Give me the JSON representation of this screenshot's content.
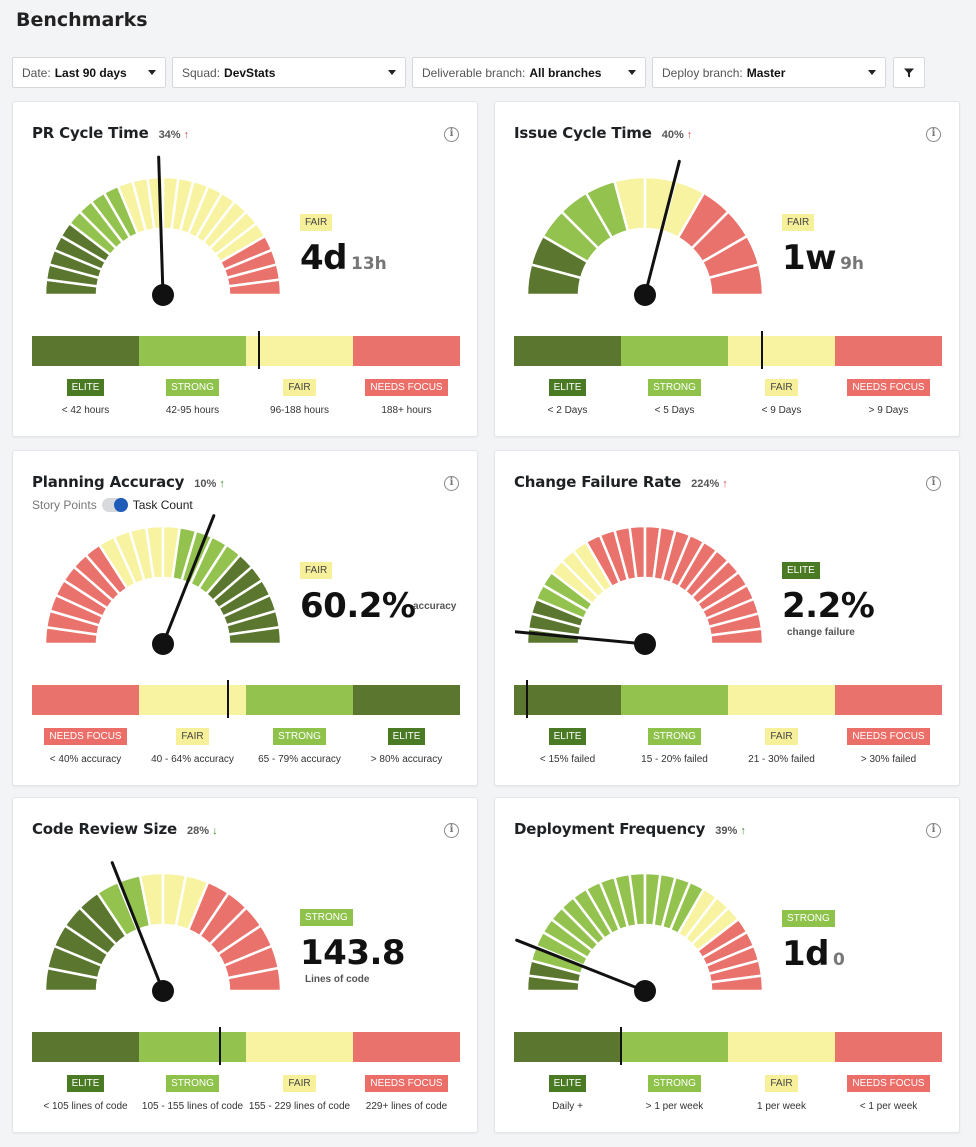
{
  "page": {
    "title": "Benchmarks"
  },
  "filters": [
    {
      "label": "Date:",
      "value": "Last 90 days",
      "width": 154
    },
    {
      "label": "Squad:",
      "value": "DevStats",
      "width": 234
    },
    {
      "label": "Deliverable branch:",
      "value": "All branches",
      "width": 234
    },
    {
      "label": "Deploy branch:",
      "value": "Master",
      "width": 234
    }
  ],
  "filter_button": {
    "icon": "filter-icon"
  },
  "colors": {
    "elite": "#5b772f",
    "strong": "#94c24e",
    "fair": "#f8f3a0",
    "needs_focus": "#ea726c"
  },
  "cards": [
    {
      "title": "PR Cycle Time",
      "change": "34%",
      "trend": "up",
      "trend_color": "red",
      "rating": "FAIR",
      "value": "4d",
      "unit": "13h",
      "caption": "",
      "gauge": {
        "order": [
          "elite",
          "strong",
          "fair",
          "needs"
        ],
        "counts": [
          5,
          4,
          11,
          4
        ],
        "needle": 0.49
      },
      "marker": 0.53,
      "legend": [
        {
          "badge": "ELITE",
          "cls": "elite",
          "range": "< 42 hours"
        },
        {
          "badge": "STRONG",
          "cls": "strong",
          "range": "42-95 hours"
        },
        {
          "badge": "FAIR",
          "cls": "fair",
          "range": "96-188 hours"
        },
        {
          "badge": "NEEDS FOCUS",
          "cls": "needs",
          "range": "188+ hours"
        }
      ]
    },
    {
      "title": "Issue Cycle Time",
      "change": "40%",
      "trend": "up",
      "trend_color": "red",
      "rating": "FAIR",
      "value": "1w",
      "unit": "9h",
      "caption": "",
      "gauge": {
        "order": [
          "elite",
          "strong",
          "fair",
          "needs"
        ],
        "counts": [
          2,
          3,
          3,
          4
        ],
        "needle": 0.58
      },
      "marker": 0.58,
      "legend": [
        {
          "badge": "ELITE",
          "cls": "elite",
          "range": "< 2 Days"
        },
        {
          "badge": "STRONG",
          "cls": "strong",
          "range": "< 5 Days"
        },
        {
          "badge": "FAIR",
          "cls": "fair",
          "range": "< 9 Days"
        },
        {
          "badge": "NEEDS FOCUS",
          "cls": "needs",
          "range": "> 9 Days"
        }
      ]
    },
    {
      "title": "Planning Accuracy",
      "change": "10%",
      "trend": "up",
      "trend_color": "green",
      "rating": "FAIR",
      "value": "60.2%",
      "unit": "",
      "caption": "accuracy",
      "toggle": {
        "off_label": "Story Points",
        "on_label": "Task Count"
      },
      "gauge": {
        "order": [
          "needs",
          "fair",
          "strong",
          "elite"
        ],
        "counts": [
          7,
          5,
          4,
          6
        ],
        "needle": 0.62
      },
      "marker": 0.459,
      "legend": [
        {
          "badge": "NEEDS FOCUS",
          "cls": "needs",
          "range": "< 40% accuracy"
        },
        {
          "badge": "FAIR",
          "cls": "fair",
          "range": "40 - 64% accuracy"
        },
        {
          "badge": "STRONG",
          "cls": "strong",
          "range": "65 - 79% accuracy"
        },
        {
          "badge": "ELITE",
          "cls": "elite",
          "range": "> 80% accuracy"
        }
      ]
    },
    {
      "title": "Change Failure Rate",
      "change": "224%",
      "trend": "up",
      "trend_color": "red",
      "rating": "ELITE",
      "value": "2.2%",
      "unit": "",
      "caption": "change failure",
      "gauge": {
        "order": [
          "elite",
          "strong",
          "fair",
          "needs"
        ],
        "counts": [
          3,
          2,
          3,
          16
        ],
        "needle": 0.03
      },
      "marker": 0.03,
      "legend": [
        {
          "badge": "ELITE",
          "cls": "elite",
          "range": "< 15% failed"
        },
        {
          "badge": "STRONG",
          "cls": "strong",
          "range": "15 - 20% failed"
        },
        {
          "badge": "FAIR",
          "cls": "fair",
          "range": "21 - 30% failed"
        },
        {
          "badge": "NEEDS FOCUS",
          "cls": "needs",
          "range": "> 30% failed"
        }
      ]
    },
    {
      "title": "Code Review Size",
      "change": "28%",
      "trend": "down",
      "trend_color": "green",
      "rating": "STRONG",
      "value": "143.8",
      "unit": "",
      "caption": "Lines of code",
      "gauge": {
        "order": [
          "elite",
          "strong",
          "fair",
          "needs"
        ],
        "counts": [
          5,
          2,
          3,
          6
        ],
        "needle": 0.38
      },
      "marker": 0.44,
      "legend": [
        {
          "badge": "ELITE",
          "cls": "elite",
          "range": "< 105 lines of code"
        },
        {
          "badge": "STRONG",
          "cls": "strong",
          "range": "105 - 155 lines of code"
        },
        {
          "badge": "FAIR",
          "cls": "fair",
          "range": "155 - 229 lines of code"
        },
        {
          "badge": "NEEDS FOCUS",
          "cls": "needs",
          "range": "229+ lines of code"
        }
      ]
    },
    {
      "title": "Deployment Frequency",
      "change": "39%",
      "trend": "up",
      "trend_color": "green",
      "rating": "STRONG",
      "value": "1d",
      "unit": "0",
      "caption": "",
      "gauge": {
        "order": [
          "elite",
          "strong",
          "fair",
          "needs"
        ],
        "counts": [
          2,
          14,
          3,
          5
        ],
        "needle": 0.12
      },
      "marker": 0.25,
      "legend": [
        {
          "badge": "ELITE",
          "cls": "elite",
          "range": "Daily +"
        },
        {
          "badge": "STRONG",
          "cls": "strong",
          "range": "> 1 per week"
        },
        {
          "badge": "FAIR",
          "cls": "fair",
          "range": "1 per week"
        },
        {
          "badge": "NEEDS FOCUS",
          "cls": "needs",
          "range": "< 1 per week"
        }
      ]
    }
  ]
}
